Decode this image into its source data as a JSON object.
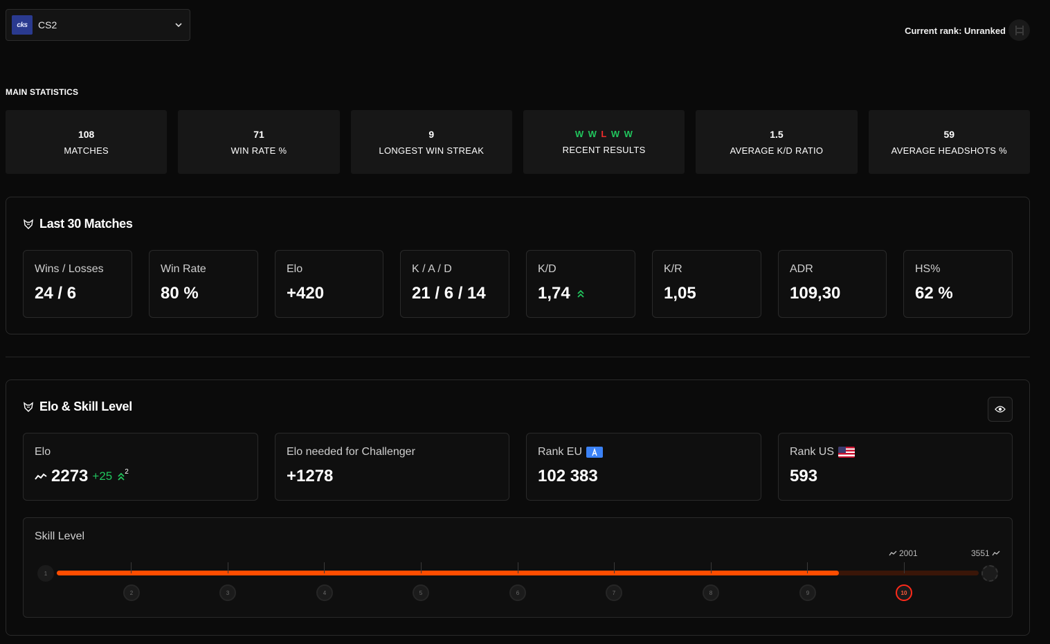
{
  "game_selector": {
    "logo_text": "cks",
    "name": "CS2",
    "icon": "chevron-down-icon"
  },
  "current_rank": {
    "label": "Current rank: Unranked",
    "icon": "unranked-badge-icon"
  },
  "main_statistics": {
    "title": "MAIN STATISTICS",
    "cards": [
      {
        "value": "108",
        "label": "MATCHES"
      },
      {
        "value": "71",
        "label": "WIN RATE %"
      },
      {
        "value": "9",
        "label": "LONGEST WIN STREAK"
      },
      {
        "value": "",
        "label": "RECENT RESULTS"
      },
      {
        "value": "1.5",
        "label": "AVERAGE K/D RATIO"
      },
      {
        "value": "59",
        "label": "AVERAGE HEADSHOTS %"
      }
    ],
    "recent_results": [
      "W",
      "W",
      "L",
      "W",
      "W"
    ]
  },
  "last30": {
    "title": "Last 30 Matches",
    "metrics": [
      {
        "label": "Wins / Losses",
        "value": "24 / 6"
      },
      {
        "label": "Win Rate",
        "value": "80 %"
      },
      {
        "label": "Elo",
        "value": "+420"
      },
      {
        "label": "K / A / D",
        "value": "21 / 6 / 14"
      },
      {
        "label": "K/D",
        "value": "1,74"
      },
      {
        "label": "K/R",
        "value": "1,05"
      },
      {
        "label": "ADR",
        "value": "109,30"
      },
      {
        "label": "HS%",
        "value": "62 %"
      }
    ]
  },
  "elo_skill": {
    "title": "Elo & Skill Level",
    "elo": {
      "label": "Elo",
      "value": "2273",
      "delta": "+25",
      "delta_sup": "2"
    },
    "challenger": {
      "label": "Elo needed for Challenger",
      "value": "+1278"
    },
    "rank_eu": {
      "label": "Rank EU",
      "value": "102 383"
    },
    "rank_us": {
      "label": "Rank US",
      "value": "593"
    },
    "skill": {
      "label": "Skill Level",
      "levels": [
        "1",
        "2",
        "3",
        "4",
        "5",
        "6",
        "7",
        "8",
        "9",
        "10"
      ],
      "current_level": "10",
      "level10_elo": "2001",
      "max_elo": "3551",
      "progress": 0.848
    }
  },
  "colors": {
    "accent": "#ff4d00",
    "win": "#21c55d",
    "loss": "#ef2b2b",
    "card": "#171717"
  }
}
